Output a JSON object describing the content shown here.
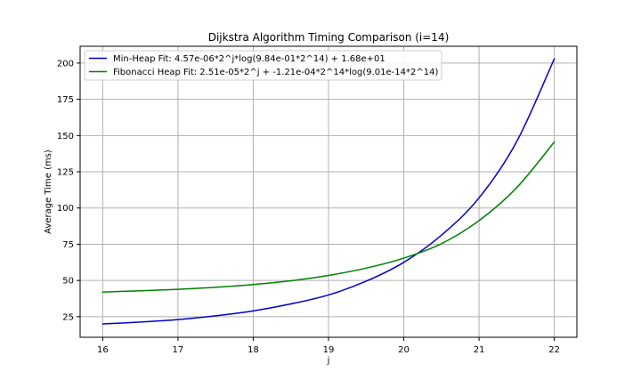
{
  "chart_data": {
    "type": "line",
    "title": "Dijkstra Algorithm Timing Comparison (i=14)",
    "xlabel": "j",
    "ylabel": "Average Time (ms)",
    "xlim": [
      15.7,
      22.3
    ],
    "ylim": [
      10.8,
      211.6
    ],
    "x_ticks": [
      16,
      17,
      18,
      19,
      20,
      21,
      22
    ],
    "y_ticks": [
      25,
      50,
      75,
      100,
      125,
      150,
      175,
      200
    ],
    "grid": true,
    "legend_position": "top-left",
    "series": [
      {
        "name": "Min-Heap Fit: 4.57e-06*2^j*log(9.84e-01*2^14) + 1.68e+01",
        "color": "#0000cc",
        "x": [
          16,
          16.5,
          17,
          17.5,
          18,
          18.5,
          19,
          19.5,
          20,
          20.5,
          21,
          21.5,
          22
        ],
        "y": [
          20.0,
          21.3,
          23.0,
          25.6,
          29.0,
          33.8,
          40.0,
          49.5,
          62.5,
          81.2,
          107.0,
          145.8,
          203.0
        ]
      },
      {
        "name": "Fibonacci Heap Fit: 2.51e-05*2^j + -1.21e-04*2^14*log(9.01e-14*2^14)",
        "color": "#008000",
        "x": [
          16,
          16.5,
          17,
          17.5,
          18,
          18.5,
          19,
          19.5,
          20,
          20.5,
          21,
          21.5,
          22
        ],
        "y": [
          42.0,
          42.9,
          43.9,
          45.3,
          47.2,
          49.8,
          53.5,
          58.5,
          65.4,
          75.4,
          91.3,
          114.0,
          145.6
        ]
      }
    ]
  }
}
